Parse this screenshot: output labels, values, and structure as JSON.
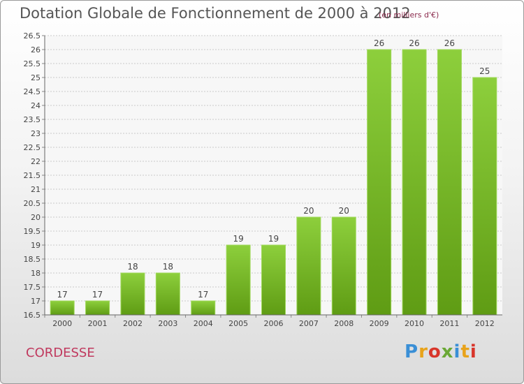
{
  "chart_data": {
    "type": "bar",
    "title": "Dotation Globale de Fonctionnement de 2000 à 2012",
    "subtitle": "(en milliers d'€)",
    "xlabel": "",
    "ylabel": "",
    "categories": [
      "2000",
      "2001",
      "2002",
      "2003",
      "2004",
      "2005",
      "2006",
      "2007",
      "2008",
      "2009",
      "2010",
      "2011",
      "2012"
    ],
    "values": [
      17,
      17,
      18,
      18,
      17,
      19,
      19,
      20,
      20,
      26,
      26,
      26,
      25
    ],
    "data_labels": [
      "17",
      "17",
      "18",
      "18",
      "17",
      "19",
      "19",
      "20",
      "20",
      "26",
      "26",
      "26",
      "25"
    ],
    "ylim": [
      16.5,
      26.5
    ],
    "yticks": [
      "16.5",
      "17",
      "17.5",
      "18",
      "18.5",
      "19",
      "19.5",
      "20",
      "20.5",
      "21",
      "21.5",
      "22",
      "22.5",
      "23",
      "23.5",
      "24",
      "24.5",
      "25",
      "25.5",
      "26",
      "26.5"
    ],
    "grid": true,
    "bar_color": "#7cbb2c"
  },
  "footer": {
    "commune": "CORDESSE",
    "logo_letters": [
      {
        "ch": "P",
        "color": "#3a8fd6"
      },
      {
        "ch": "r",
        "color": "#e8a31b"
      },
      {
        "ch": "o",
        "color": "#d8352a"
      },
      {
        "ch": "x",
        "color": "#6aa835"
      },
      {
        "ch": "i",
        "color": "#3a8fd6"
      },
      {
        "ch": "t",
        "color": "#e8a31b"
      },
      {
        "ch": "i",
        "color": "#d8352a"
      }
    ]
  }
}
